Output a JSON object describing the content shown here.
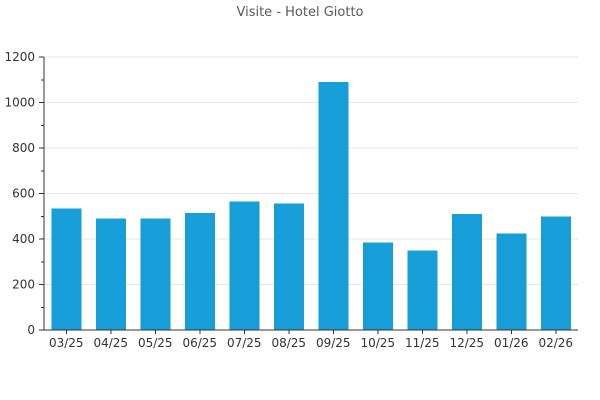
{
  "chart_data": {
    "type": "bar",
    "title": "Visite - Hotel Giotto",
    "categories": [
      "03/25",
      "04/25",
      "05/25",
      "06/25",
      "07/25",
      "08/25",
      "09/25",
      "10/25",
      "11/25",
      "12/25",
      "01/26",
      "02/26"
    ],
    "values": [
      535,
      490,
      490,
      515,
      565,
      555,
      1090,
      385,
      350,
      510,
      425,
      500
    ],
    "xlabel": "",
    "ylabel": "",
    "ylim": [
      0,
      1200
    ],
    "yticks": [
      0,
      200,
      400,
      600,
      800,
      1000,
      1200
    ],
    "minor_ytick_step": 100,
    "grid": true,
    "legend": "none",
    "colors": {
      "bar": "#179dd8",
      "grid": "#e6e6e6",
      "axis": "#333333",
      "tick_label": "#333333",
      "title": "#595959",
      "background": "#ffffff"
    }
  }
}
